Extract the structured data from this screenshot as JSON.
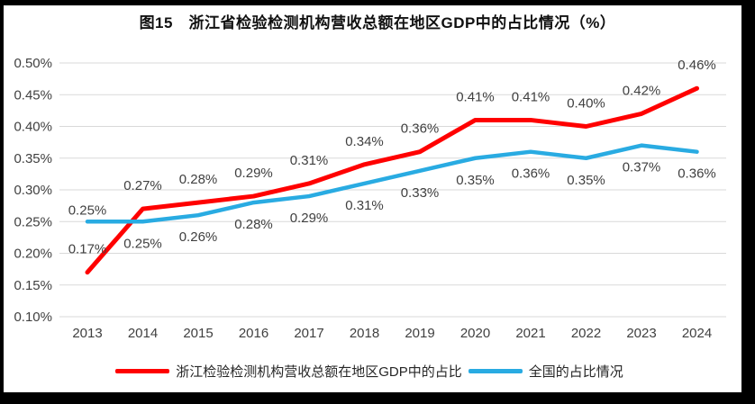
{
  "title": "图15　浙江省检验检测机构营收总额在地区GDP中的占比情况（%）",
  "chart_data": {
    "type": "line",
    "categories": [
      "2013",
      "2014",
      "2015",
      "2016",
      "2017",
      "2018",
      "2019",
      "2020",
      "2021",
      "2022",
      "2023",
      "2024"
    ],
    "series": [
      {
        "name": "浙江检验检测机构营收总额在地区GDP中的占比",
        "color": "#FF0000",
        "values": [
          0.17,
          0.27,
          0.28,
          0.29,
          0.31,
          0.34,
          0.36,
          0.41,
          0.41,
          0.4,
          0.42,
          0.46
        ],
        "labels": [
          "0.17%",
          "0.27%",
          "0.28%",
          "0.29%",
          "0.31%",
          "0.34%",
          "0.36%",
          "0.41%",
          "0.41%",
          "0.40%",
          "0.42%",
          "0.46%"
        ],
        "label_position": "above"
      },
      {
        "name": "全国的占比情况",
        "color": "#29ABE2",
        "values": [
          0.25,
          0.25,
          0.26,
          0.28,
          0.29,
          0.31,
          0.33,
          0.35,
          0.36,
          0.35,
          0.37,
          0.36
        ],
        "labels": [
          "0.25%",
          "0.25%",
          "0.26%",
          "0.28%",
          "0.29%",
          "0.31%",
          "0.33%",
          "0.35%",
          "0.36%",
          "0.35%",
          "0.37%",
          "0.36%"
        ],
        "label_position": "below",
        "label_position_overrides": {
          "0": "above"
        }
      }
    ],
    "xlabel": "",
    "ylabel": "",
    "ylim": [
      0.1,
      0.5
    ],
    "ytick_step": 0.05,
    "ytick_labels": [
      "0.50%",
      "0.45%",
      "0.40%",
      "0.35%",
      "0.30%",
      "0.25%",
      "0.20%",
      "0.15%",
      "0.10%"
    ],
    "value_suffix": "%",
    "grid": true,
    "grid_color": "#D9D9D9",
    "axis_text_color": "#404040",
    "legend_position": "bottom"
  }
}
